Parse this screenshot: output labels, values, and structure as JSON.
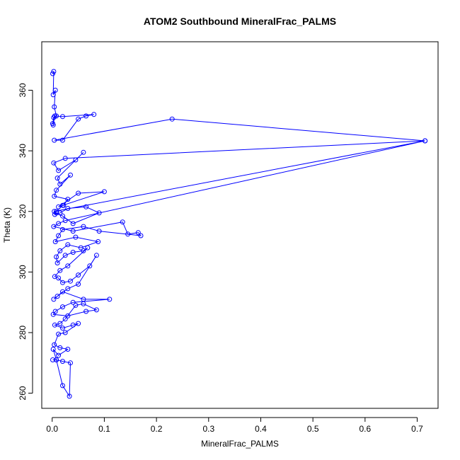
{
  "chart_data": {
    "type": "line",
    "title": "ATOM2 Southbound MineralFrac_PALMS",
    "xlabel": "MineralFrac_PALMS",
    "ylabel": "Theta (K)",
    "xlim": [
      -0.02,
      0.74
    ],
    "ylim": [
      255,
      376
    ],
    "x_ticks": [
      0,
      0.1,
      0.2,
      0.3,
      0.4,
      0.5,
      0.6,
      0.7
    ],
    "x_tick_labels": [
      "0.0",
      "0.1",
      "0.2",
      "0.3",
      "0.4",
      "0.5",
      "0.6",
      "0.7"
    ],
    "y_ticks": [
      260,
      280,
      300,
      320,
      340,
      360
    ],
    "y_tick_labels": [
      "260",
      "280",
      "300",
      "320",
      "340",
      "360"
    ],
    "grid": false,
    "legend": "none",
    "markers": "open-circle",
    "color": "#0000ff",
    "series": [
      {
        "x": [
          0.001,
          0.003,
          0.002,
          0.006,
          0.004,
          0.008,
          0.003,
          0.001,
          0.002,
          0.005,
          0.02,
          0.08,
          0.065,
          0.05,
          0.02,
          0.004,
          0.23,
          0.715,
          0.025,
          0.003,
          0.012,
          0.045,
          0.06,
          0.01,
          0.015,
          0.035,
          0.008,
          0.004,
          0.03,
          0.022,
          0.012,
          0.05,
          0.1,
          0.02,
          0.008,
          0.005,
          0.015,
          0.03,
          0.065,
          0.09,
          0.04,
          0.02,
          0.008,
          0.004,
          0.715,
          0.025,
          0.012,
          0.003,
          0.04,
          0.135,
          0.145,
          0.165,
          0.17,
          0.09,
          0.06,
          0.02,
          0.012,
          0.006,
          0.045,
          0.088,
          0.055,
          0.03,
          0.015,
          0.008,
          0.01,
          0.025,
          0.04,
          0.06,
          0.068,
          0.03,
          0.015,
          0.005,
          0.012,
          0.02,
          0.035,
          0.05,
          0.072,
          0.085,
          0.05,
          0.03,
          0.01,
          0.003,
          0.02,
          0.06,
          0.11,
          0.04,
          0.02,
          0.006,
          0.002,
          0.03,
          0.065,
          0.085,
          0.06,
          0.045,
          0.025,
          0.015,
          0.005,
          0.02,
          0.04,
          0.05,
          0.025,
          0.012,
          0.004,
          0.015,
          0.03,
          0.012,
          0.002,
          0.008,
          0.02,
          0.035,
          0.033,
          0.02,
          0.008,
          0.001
        ],
        "y": [
          365.5,
          366.2,
          358.5,
          360.0,
          354.5,
          351.5,
          351.0,
          349.0,
          348.5,
          351.5,
          351.3,
          352.0,
          351.5,
          350.5,
          343.5,
          343.5,
          350.5,
          343.3,
          337.5,
          336.0,
          333.5,
          337.0,
          339.5,
          331.0,
          329.0,
          332.0,
          327.0,
          325.0,
          324.0,
          322.0,
          321.5,
          326.0,
          326.5,
          322.0,
          320.0,
          319.0,
          319.5,
          321.0,
          321.5,
          319.5,
          316.0,
          318.5,
          319.5,
          320.0,
          343.3,
          317.0,
          316.0,
          315.0,
          313.5,
          316.5,
          312.5,
          313.0,
          312.0,
          313.5,
          315.0,
          314.0,
          312.0,
          310.0,
          311.5,
          310.0,
          308.0,
          309.0,
          307.0,
          305.0,
          303.0,
          305.5,
          306.5,
          307.0,
          308.0,
          302.0,
          300.5,
          298.5,
          298.0,
          296.5,
          297.0,
          299.0,
          302.0,
          305.5,
          296.0,
          294.5,
          292.0,
          291.0,
          293.5,
          291.0,
          291.0,
          290.0,
          288.5,
          287.0,
          286.0,
          285.5,
          287.0,
          287.5,
          289.5,
          289.0,
          284.5,
          283.0,
          282.5,
          281.5,
          282.5,
          283.0,
          280.0,
          279.5,
          276.0,
          275.0,
          274.5,
          272.5,
          274.5,
          271.0,
          270.5,
          270.0,
          259.0,
          262.5,
          271.0,
          271.0
        ]
      }
    ]
  }
}
